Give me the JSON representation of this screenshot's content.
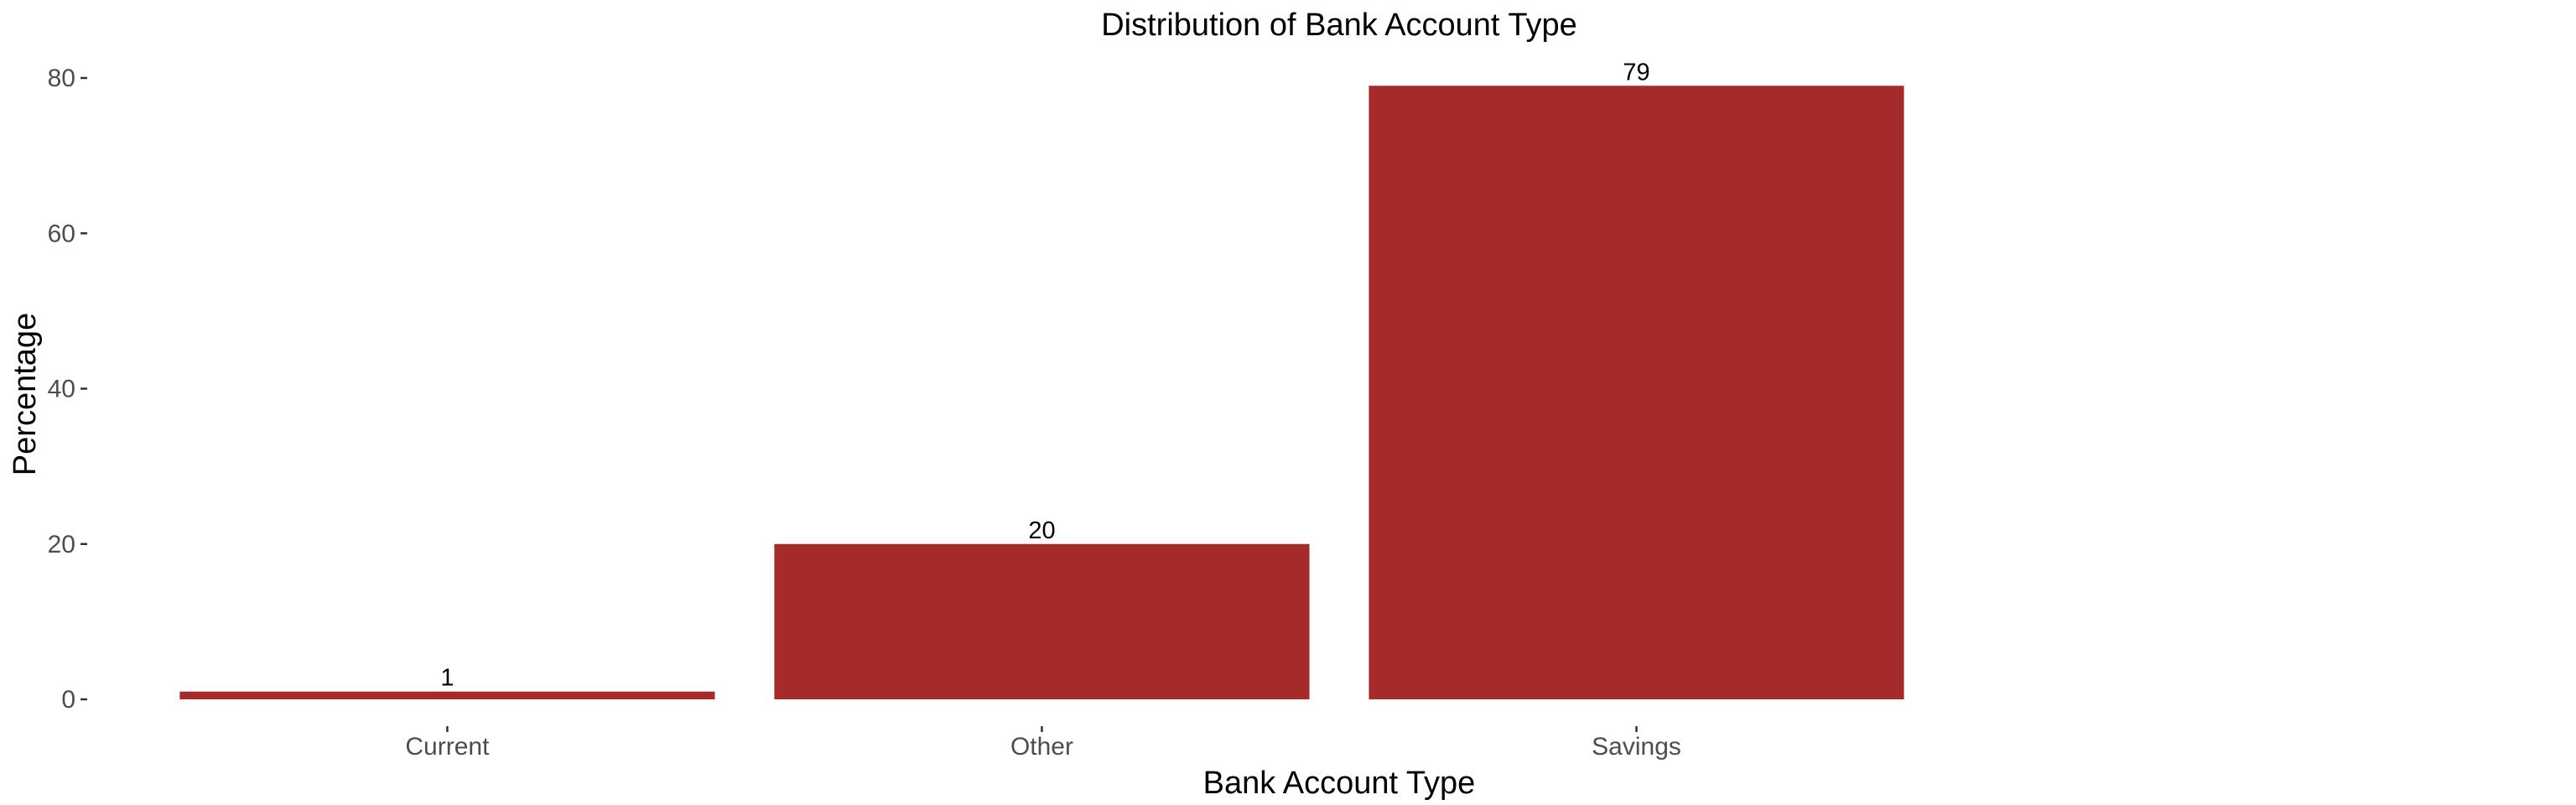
{
  "chart_data": {
    "type": "bar",
    "title": "Distribution of Bank Account Type",
    "xlabel": "Bank Account Type",
    "ylabel": "Percentage",
    "categories": [
      "Current",
      "Other",
      "Savings"
    ],
    "values": [
      1,
      20,
      79
    ],
    "data_labels": [
      "1",
      "20",
      "79"
    ],
    "yticks": [
      0,
      20,
      40,
      60,
      80
    ],
    "ylim": [
      0,
      80
    ],
    "grid": false,
    "legend": "none",
    "bar_color": "#a52a2a"
  }
}
